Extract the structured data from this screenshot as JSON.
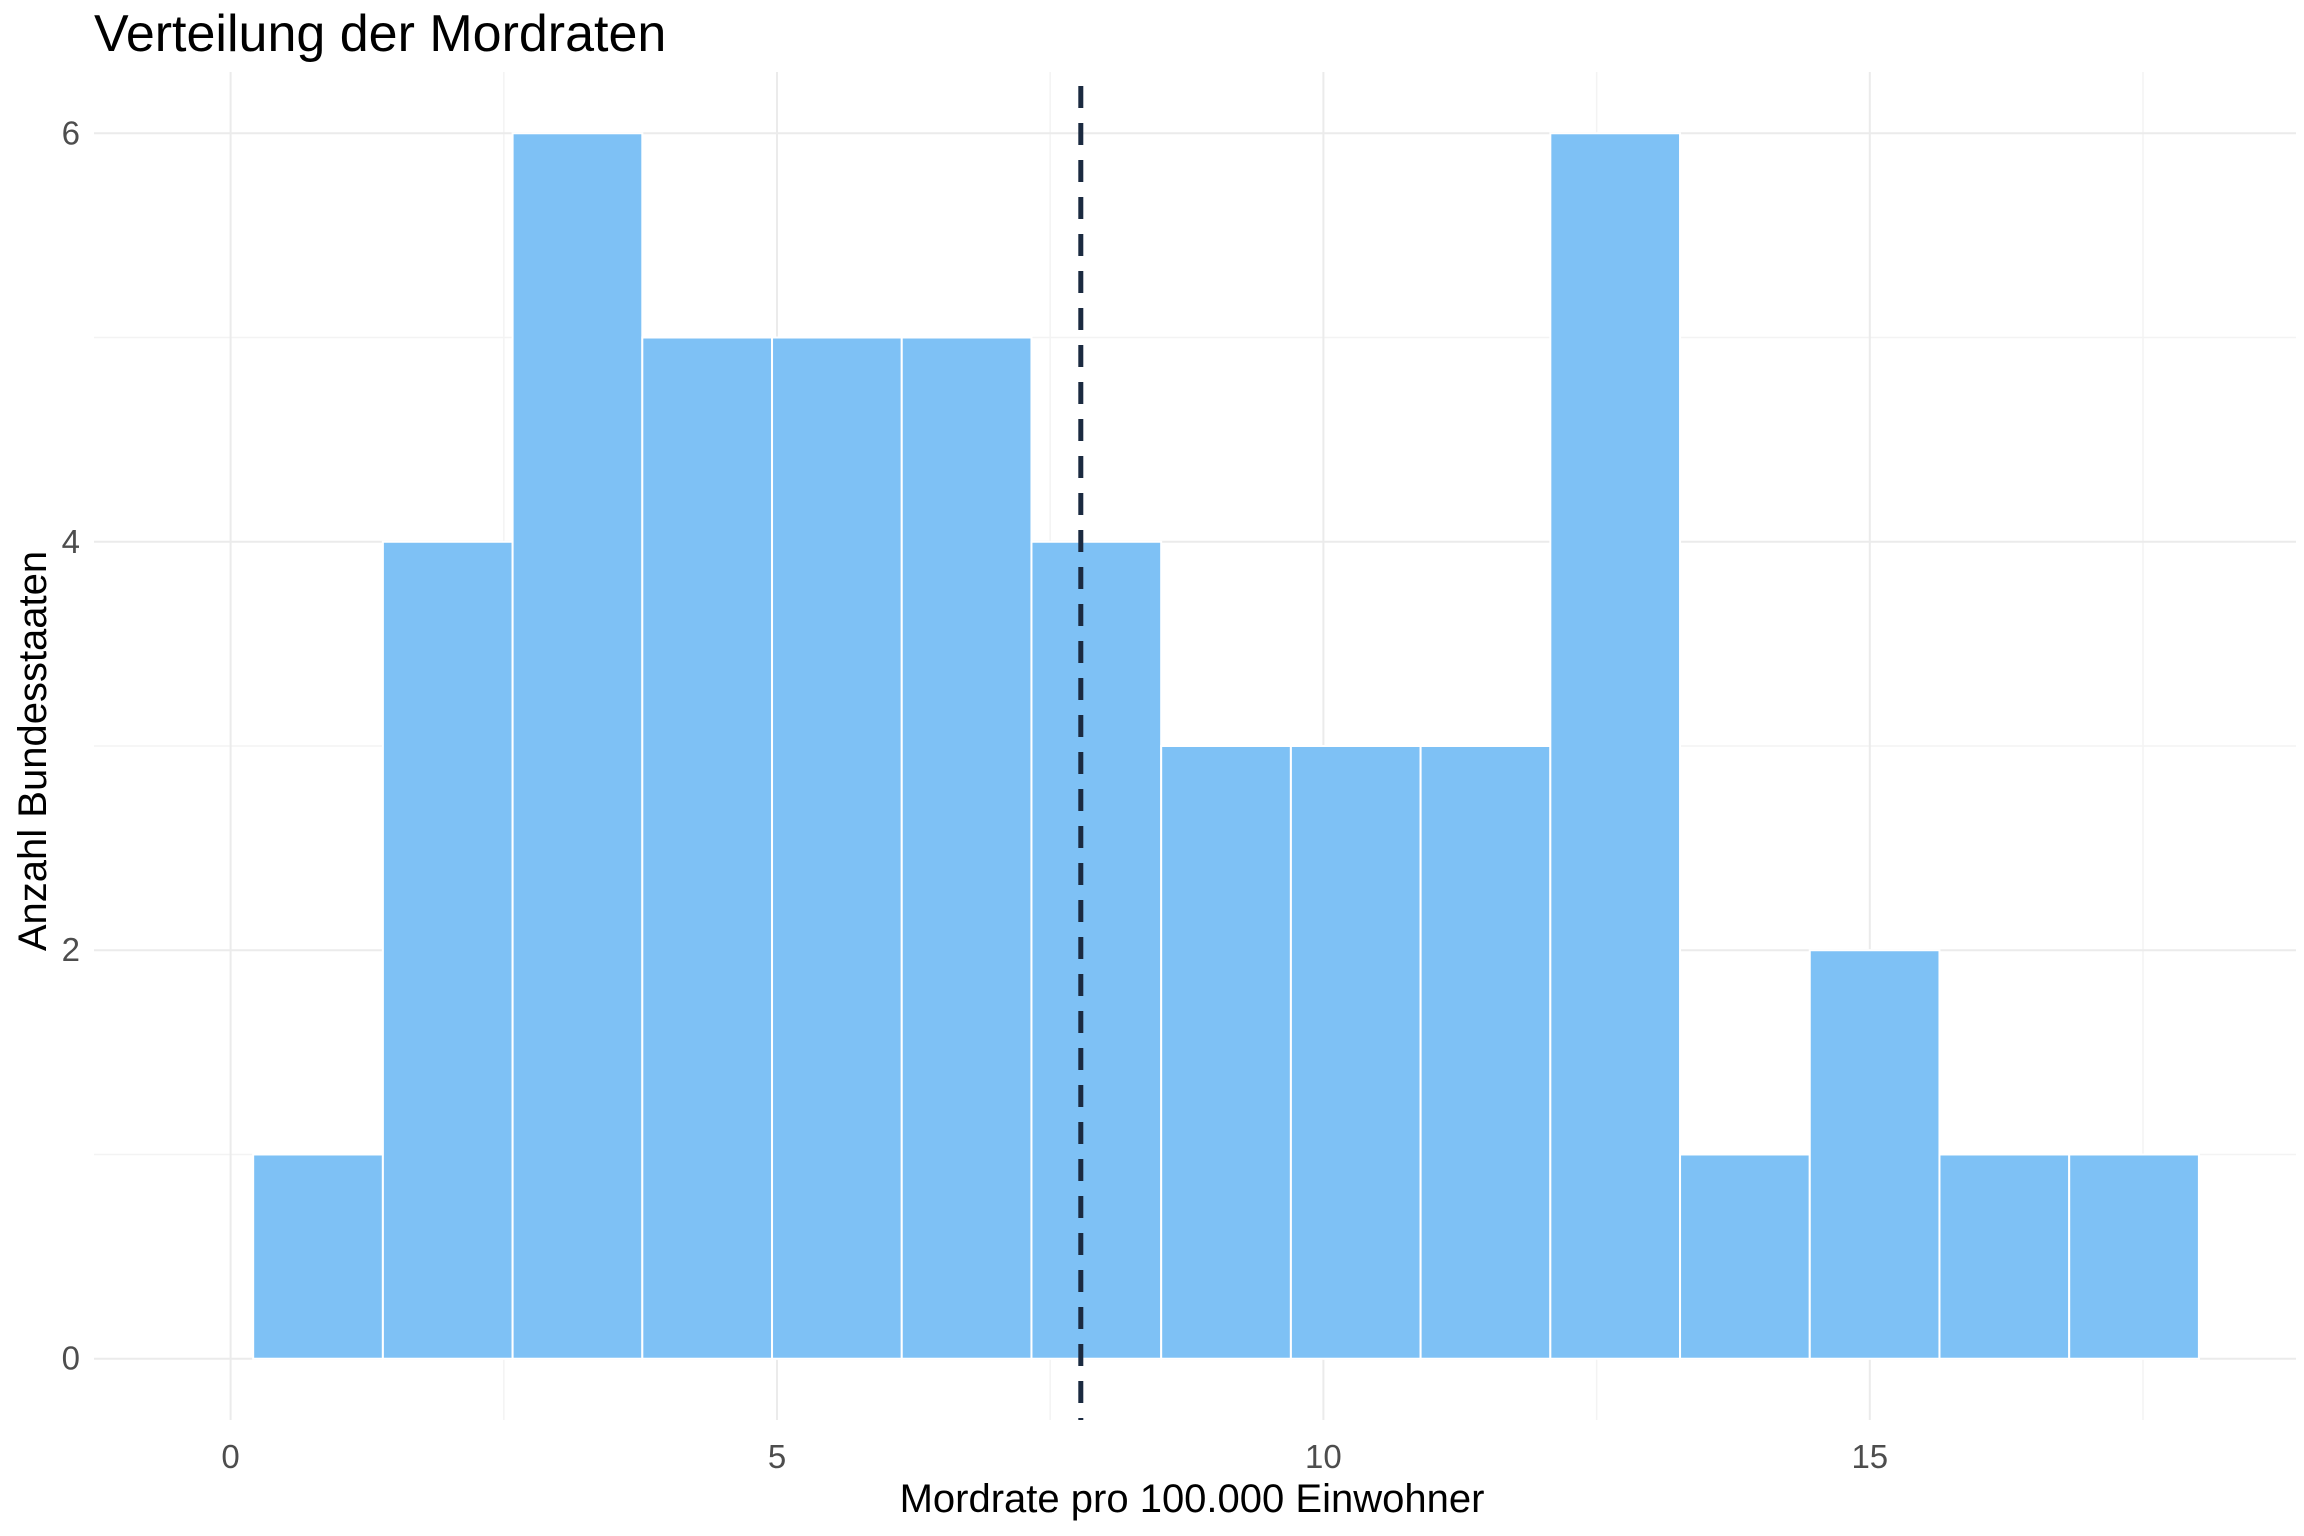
{
  "chart_data": {
    "type": "bar",
    "title": "Verteilung der Mordraten",
    "xlabel": "Mordrate pro 100.000 Einwohner",
    "ylabel": "Anzahl Bundesstaaten",
    "xlim": [
      -1.25,
      18.9
    ],
    "ylim": [
      -0.3,
      6.3
    ],
    "x_ticks": [
      0,
      5,
      10,
      15
    ],
    "y_ticks": [
      0,
      2,
      4,
      6
    ],
    "grid": true,
    "bin_width": 1.187,
    "bin_centers": [
      0.8,
      1.987,
      3.174,
      4.361,
      5.548,
      6.735,
      7.922,
      9.109,
      10.296,
      11.483,
      12.67,
      13.857,
      15.044,
      16.231,
      17.418
    ],
    "values": [
      1,
      4,
      6,
      5,
      5,
      5,
      4,
      3,
      3,
      3,
      6,
      1,
      2,
      1,
      1
    ],
    "reference_line": {
      "x": 7.78,
      "style": "dashed"
    },
    "colors": {
      "bar_fill": "#7ec1f5",
      "bar_outline": "#ffffff",
      "reference_line": "#1b2a40"
    }
  }
}
